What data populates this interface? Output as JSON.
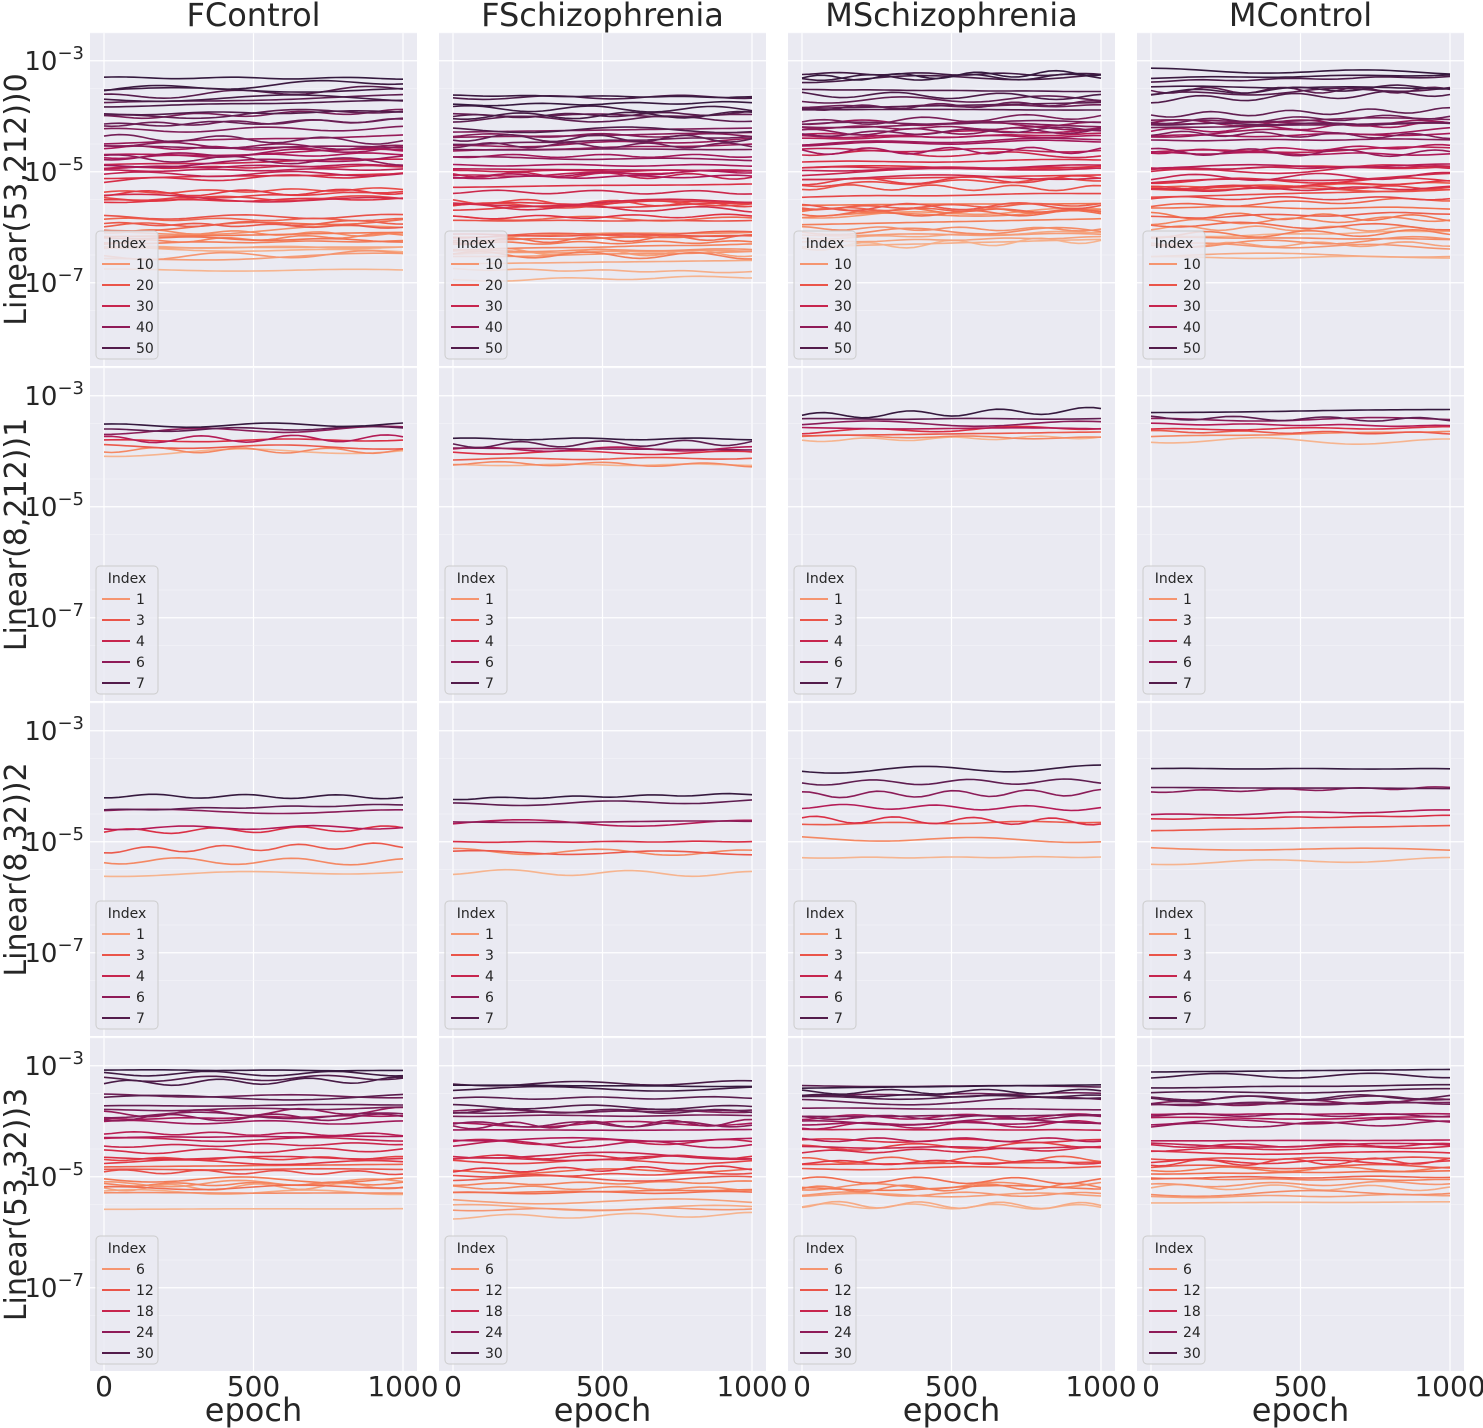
{
  "chart_data": {
    "type": "line",
    "layout": "facet-grid",
    "yscale": "log",
    "xlabel": "epoch",
    "legend_title": "Index",
    "legend_position": "lower-left",
    "xlim": [
      0,
      1000
    ],
    "ylim_exponent": [
      -8.5,
      -2.5
    ],
    "x_ticks": [
      {
        "value": 0,
        "label": "0"
      },
      {
        "value": 500,
        "label": "500"
      },
      {
        "value": 1000,
        "label": "1000"
      }
    ],
    "y_ticks": [
      {
        "exponent": -3,
        "label": "10−3"
      },
      {
        "exponent": -5,
        "label": "10−5"
      },
      {
        "exponent": -7,
        "label": "10−7"
      }
    ],
    "columns": [
      "FControl",
      "FSchizophrenia",
      "MSchizophrenia",
      "MControl"
    ],
    "rows": [
      {
        "label": "Linear(53,212))0",
        "legend": [
          "10",
          "20",
          "30",
          "40",
          "50"
        ],
        "series_count": 53,
        "panels": [
          {
            "range": [
              -6.9,
              -3.3
            ],
            "curve": 0.25
          },
          {
            "range": [
              -7.1,
              -3.4
            ],
            "curve": 0.2
          },
          {
            "range": [
              -6.5,
              -3.1
            ],
            "curve": 0.2
          },
          {
            "range": [
              -6.7,
              -3.1
            ],
            "curve": 0.2
          }
        ]
      },
      {
        "label": "Linear(8,212))1",
        "legend": [
          "1",
          "3",
          "4",
          "6",
          "7"
        ],
        "series_count": 8,
        "panels": [
          {
            "range": [
              -4.1,
              -3.5
            ],
            "curve": 0.1
          },
          {
            "range": [
              -4.3,
              -3.75
            ],
            "curve": 0.15
          },
          {
            "range": [
              -3.85,
              -3.35
            ],
            "curve": 0.15
          },
          {
            "range": [
              -3.85,
              -3.3
            ],
            "curve": 0.15
          }
        ]
      },
      {
        "label": "Linear(8,32))2",
        "legend": [
          "1",
          "3",
          "4",
          "6",
          "7"
        ],
        "series_count": 8,
        "panels": [
          {
            "range": [
              -5.6,
              -4.0
            ],
            "curve": 0.15
          },
          {
            "range": [
              -5.55,
              -4.1
            ],
            "curve": 0.15
          },
          {
            "range": [
              -5.3,
              -3.6
            ],
            "curve": 0.15
          },
          {
            "range": [
              -5.4,
              -3.6
            ],
            "curve": 0.15
          }
        ]
      },
      {
        "label": "Linear(53,32))3",
        "legend": [
          "6",
          "12",
          "18",
          "24",
          "30"
        ],
        "series_count": 32,
        "panels": [
          {
            "range": [
              -5.75,
              -3.0
            ],
            "curve": 0.1
          },
          {
            "range": [
              -5.9,
              -3.1
            ],
            "curve": 0.1
          },
          {
            "range": [
              -5.7,
              -3.0
            ],
            "curve": 0.1
          },
          {
            "range": [
              -5.65,
              -2.95
            ],
            "curve": 0.1
          }
        ]
      }
    ],
    "palette": [
      "#f6b48f",
      "#f37651",
      "#e13342",
      "#ad1759",
      "#701f57",
      "#35193e"
    ]
  }
}
